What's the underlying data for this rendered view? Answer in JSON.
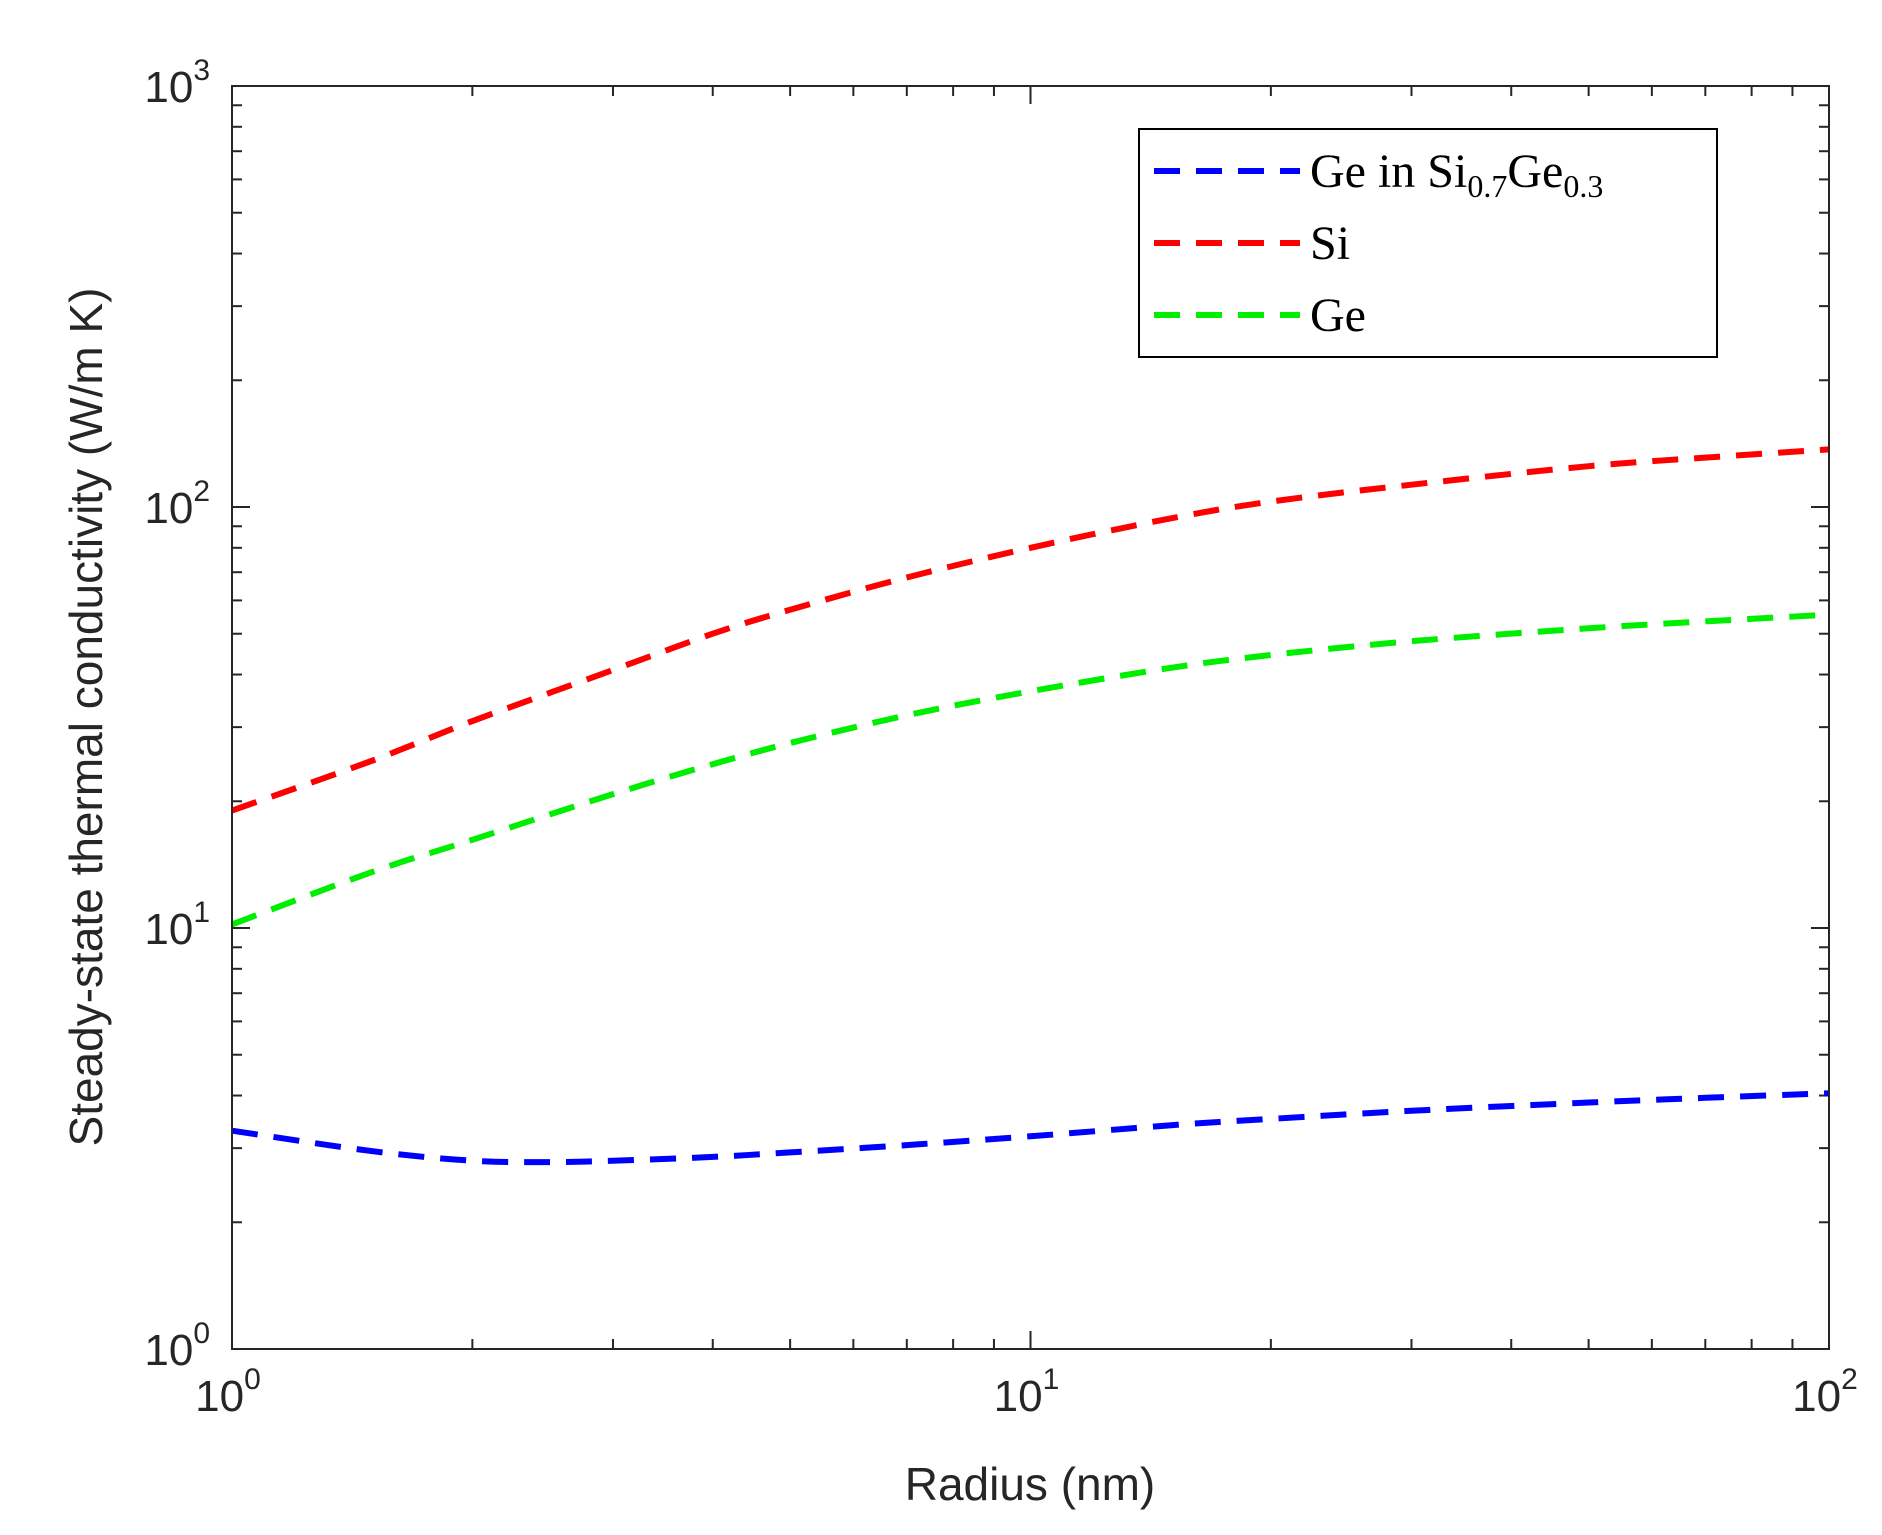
{
  "chart_data": {
    "type": "line",
    "title": "",
    "xlabel": "Radius (nm)",
    "ylabel": "Steady-state thermal conductivity (W/m K)",
    "xscale": "log",
    "yscale": "log",
    "xlim": [
      1,
      100
    ],
    "ylim": [
      1,
      1000
    ],
    "grid": false,
    "legend_position": "top-right",
    "x_ticks": [
      {
        "base": "10",
        "exp": "0",
        "value": 1
      },
      {
        "base": "10",
        "exp": "1",
        "value": 10
      },
      {
        "base": "10",
        "exp": "2",
        "value": 100
      }
    ],
    "y_ticks": [
      {
        "base": "10",
        "exp": "0",
        "value": 1
      },
      {
        "base": "10",
        "exp": "1",
        "value": 10
      },
      {
        "base": "10",
        "exp": "2",
        "value": 100
      },
      {
        "base": "10",
        "exp": "3",
        "value": 1000
      }
    ],
    "series": [
      {
        "name": "Ge in Si0.7Ge0.3",
        "legend_main": "Ge in Si",
        "legend_sub1": "0.7",
        "legend_mid": "Ge",
        "legend_sub2": "0.3",
        "color": "#0000ff",
        "x": [
          1,
          1.5,
          2,
          2.5,
          3,
          4,
          5,
          7,
          10,
          15,
          20,
          30,
          50,
          70,
          100
        ],
        "y": [
          3.3,
          2.95,
          2.8,
          2.78,
          2.8,
          2.86,
          2.93,
          3.05,
          3.2,
          3.4,
          3.52,
          3.68,
          3.85,
          3.95,
          4.05
        ]
      },
      {
        "name": "Si",
        "color": "#ff0000",
        "x": [
          1,
          1.5,
          2,
          3,
          4,
          5,
          7,
          10,
          15,
          20,
          30,
          50,
          70,
          100
        ],
        "y": [
          19,
          25,
          31,
          41,
          50,
          57,
          68,
          80,
          94,
          103,
          113,
          125,
          131,
          137
        ]
      },
      {
        "name": "Ge",
        "color": "#00ee00",
        "x": [
          1,
          1.5,
          2,
          3,
          4,
          5,
          7,
          10,
          15,
          20,
          30,
          50,
          70,
          100
        ],
        "y": [
          10.2,
          13.6,
          16.2,
          20.8,
          24.5,
          27.5,
          32,
          36.5,
          41.5,
          44.5,
          48,
          51.5,
          53.5,
          55.5
        ]
      }
    ]
  }
}
